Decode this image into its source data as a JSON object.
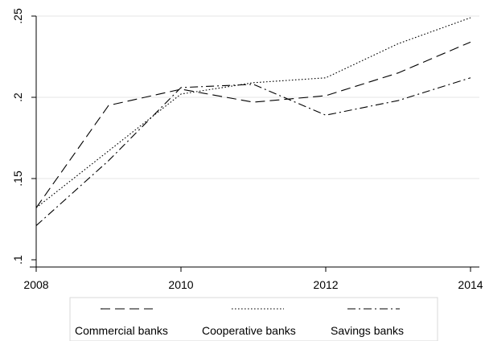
{
  "chart_data": {
    "type": "line",
    "title": "",
    "xlabel": "",
    "ylabel": "",
    "x": [
      2008,
      2009,
      2010,
      2011,
      2012,
      2013,
      2014
    ],
    "xlim": [
      2008,
      2014
    ],
    "ylim": [
      0.1,
      0.25
    ],
    "x_ticks": [
      2008,
      2010,
      2012,
      2014
    ],
    "x_tick_labels": [
      "2008",
      "2010",
      "2012",
      "2014"
    ],
    "y_ticks": [
      0.1,
      0.15,
      0.2,
      0.25
    ],
    "y_tick_labels": [
      ".1",
      ".15",
      ".2",
      ".25"
    ],
    "grid": true,
    "grid_axis": "y",
    "legend_position": "bottom",
    "series": [
      {
        "name": "Commercial banks",
        "style": "dashed",
        "values": [
          0.132,
          0.195,
          0.205,
          0.197,
          0.201,
          0.215,
          0.234
        ]
      },
      {
        "name": "Cooperative banks",
        "style": "dotted",
        "values": [
          0.132,
          0.167,
          0.202,
          0.209,
          0.212,
          0.233,
          0.249
        ]
      },
      {
        "name": "Savings banks",
        "style": "dash-dot",
        "values": [
          0.121,
          0.161,
          0.206,
          0.208,
          0.189,
          0.198,
          0.212
        ]
      }
    ],
    "colors": {
      "line": "#000000",
      "grid": "#e6e6e6",
      "axis": "#000000"
    }
  }
}
